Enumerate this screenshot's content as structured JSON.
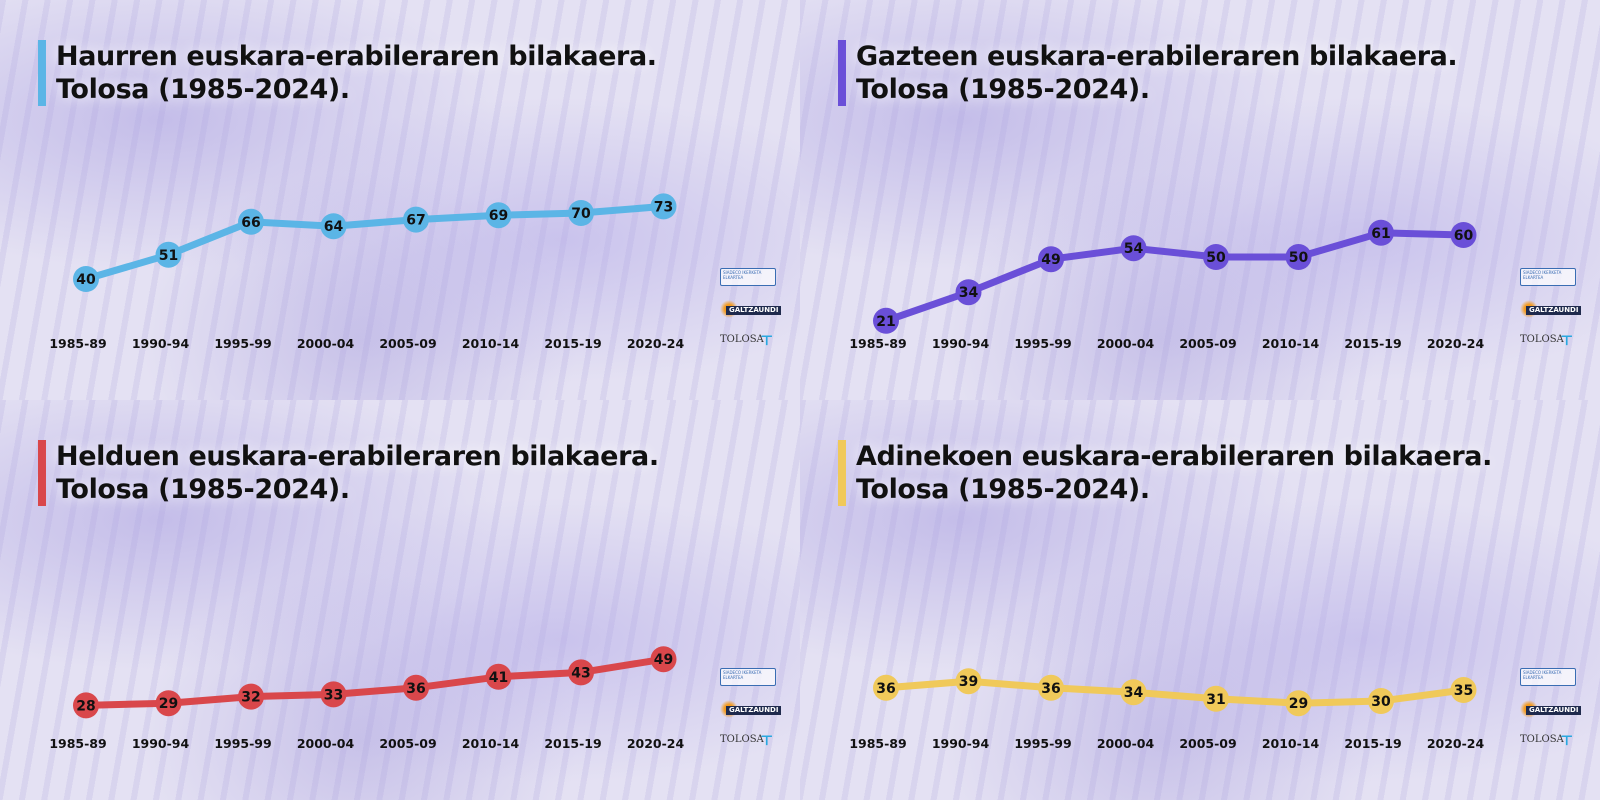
{
  "chart_data": [
    {
      "type": "line",
      "title": "Haurren euskara-erabileraren bilakaera.",
      "subtitle": "Tolosa (1985-2024).",
      "categories": [
        "1985-89",
        "1990-94",
        "1995-99",
        "2000-04",
        "2005-09",
        "2010-14",
        "2015-19",
        "2020-24"
      ],
      "values": [
        40,
        51,
        66,
        64,
        67,
        69,
        70,
        73
      ],
      "color": "#5bb5e6",
      "grid": false
    },
    {
      "type": "line",
      "title": "Gazteen euskara-erabileraren bilakaera.",
      "subtitle": "Tolosa (1985-2024).",
      "categories": [
        "1985-89",
        "1990-94",
        "1995-99",
        "2000-04",
        "2005-09",
        "2010-14",
        "2015-19",
        "2020-24"
      ],
      "values": [
        21,
        34,
        49,
        54,
        50,
        50,
        61,
        60
      ],
      "color": "#6a4fd8",
      "grid": false
    },
    {
      "type": "line",
      "title": "Helduen euskara-erabileraren bilakaera.",
      "subtitle": "Tolosa (1985-2024).",
      "categories": [
        "1985-89",
        "1990-94",
        "1995-99",
        "2000-04",
        "2005-09",
        "2010-14",
        "2015-19",
        "2020-24"
      ],
      "values": [
        28,
        29,
        32,
        33,
        36,
        41,
        43,
        49
      ],
      "color": "#d9474b",
      "grid": false
    },
    {
      "type": "line",
      "title": "Adinekoen euskara-erabileraren bilakaera.",
      "subtitle": "Tolosa (1985-2024).",
      "categories": [
        "1985-89",
        "1990-94",
        "1995-99",
        "2000-04",
        "2005-09",
        "2010-14",
        "2015-19",
        "2020-24"
      ],
      "values": [
        36,
        39,
        36,
        34,
        31,
        29,
        30,
        35
      ],
      "color": "#f0c95a",
      "grid": false
    }
  ],
  "logos": {
    "siadeco_text": "SIADECO IKERKETA ELKARTEA",
    "galtzaundi": "GALTZAUNDI",
    "tolosa": "TOLOSA"
  }
}
